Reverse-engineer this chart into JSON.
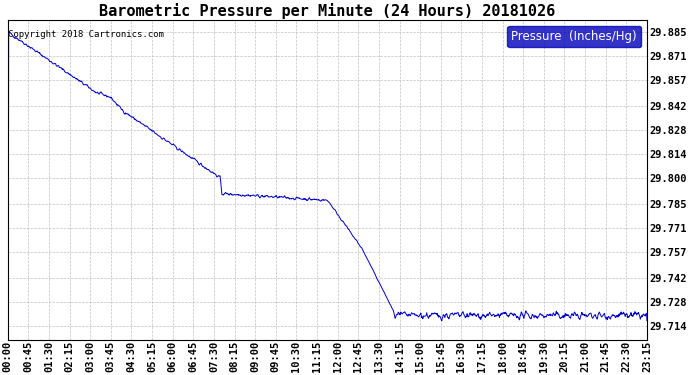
{
  "title": "Barometric Pressure per Minute (24 Hours) 20181026",
  "copyright": "Copyright 2018 Cartronics.com",
  "legend_label": "Pressure  (Inches/Hg)",
  "line_color": "#0000CC",
  "background_color": "#ffffff",
  "plot_bg_color": "#ffffff",
  "grid_color": "#bbbbbb",
  "yticks": [
    29.885,
    29.871,
    29.857,
    29.842,
    29.828,
    29.814,
    29.8,
    29.785,
    29.771,
    29.757,
    29.742,
    29.728,
    29.714
  ],
  "ylim": [
    29.706,
    29.892
  ],
  "xtick_labels": [
    "00:00",
    "00:45",
    "01:30",
    "02:15",
    "03:00",
    "03:45",
    "04:30",
    "05:15",
    "06:00",
    "06:45",
    "07:30",
    "08:15",
    "09:00",
    "09:45",
    "10:30",
    "11:15",
    "12:00",
    "12:45",
    "13:30",
    "14:15",
    "15:00",
    "15:45",
    "16:30",
    "17:15",
    "18:00",
    "18:45",
    "19:30",
    "20:15",
    "21:00",
    "21:45",
    "22:30",
    "23:15"
  ],
  "title_fontsize": 11,
  "tick_fontsize": 7.5,
  "legend_fontsize": 8.5,
  "copyright_fontsize": 6.5
}
